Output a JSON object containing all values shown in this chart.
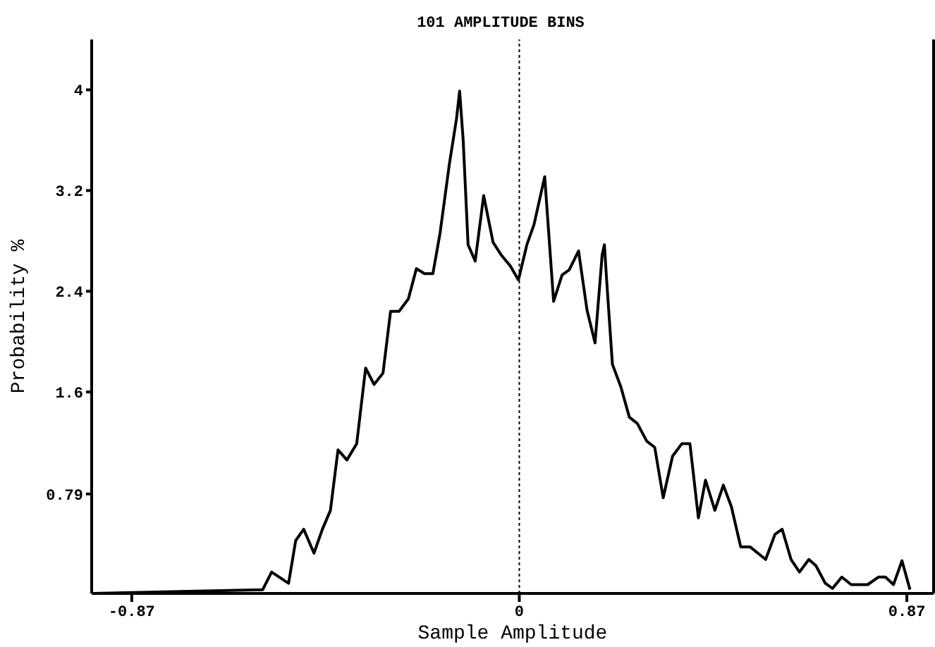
{
  "chart_data": {
    "type": "line",
    "title": "101 AMPLITUDE BINS",
    "xlabel": "Sample Amplitude",
    "ylabel": "Probability %",
    "x": [
      -0.959,
      -0.576,
      -0.556,
      -0.518,
      -0.502,
      -0.484,
      -0.461,
      -0.442,
      -0.424,
      -0.407,
      -0.387,
      -0.365,
      -0.345,
      -0.326,
      -0.306,
      -0.289,
      -0.27,
      -0.249,
      -0.231,
      -0.213,
      -0.194,
      -0.178,
      -0.157,
      -0.141,
      -0.134,
      -0.126,
      -0.115,
      -0.099,
      -0.08,
      -0.059,
      -0.041,
      -0.02,
      -0.002,
      0.017,
      0.033,
      0.057,
      0.077,
      0.096,
      0.112,
      0.133,
      0.152,
      0.17,
      0.186,
      0.191,
      0.196,
      0.209,
      0.228,
      0.247,
      0.265,
      0.286,
      0.304,
      0.323,
      0.344,
      0.365,
      0.383,
      0.402,
      0.418,
      0.439,
      0.458,
      0.476,
      0.497,
      0.518,
      0.553,
      0.574,
      0.59,
      0.61,
      0.629,
      0.65,
      0.666,
      0.687,
      0.703,
      0.724,
      0.745,
      0.782,
      0.806,
      0.822,
      0.84,
      0.859,
      0.877
    ],
    "series": [
      {
        "color": "#000000",
        "values": [
          0,
          0.03,
          0.17,
          0.08,
          0.42,
          0.51,
          0.32,
          0.51,
          0.66,
          1.14,
          1.06,
          1.19,
          1.79,
          1.66,
          1.75,
          2.24,
          2.24,
          2.34,
          2.58,
          2.54,
          2.54,
          2.86,
          3.41,
          3.77,
          3.99,
          3.6,
          2.77,
          2.64,
          3.16,
          2.79,
          2.69,
          2.6,
          2.49,
          2.77,
          2.93,
          3.31,
          2.32,
          2.53,
          2.57,
          2.72,
          2.25,
          1.99,
          2.69,
          2.77,
          2.49,
          1.82,
          1.64,
          1.4,
          1.35,
          1.21,
          1.16,
          0.76,
          1.09,
          1.19,
          1.19,
          0.6,
          0.9,
          0.66,
          0.86,
          0.69,
          0.37,
          0.37,
          0.27,
          0.47,
          0.51,
          0.27,
          0.17,
          0.27,
          0.22,
          0.08,
          0.04,
          0.13,
          0.07,
          0.07,
          0.13,
          0.13,
          0.07,
          0.26,
          0.03
        ]
      }
    ],
    "xlim": [
      -0.96,
      0.93
    ],
    "xticks": [
      -0.87,
      0,
      0.87
    ],
    "ylim": [
      0,
      4.4
    ],
    "yticks": [
      0.79,
      1.6,
      2.4,
      3.2,
      4
    ],
    "ref_lines": [
      {
        "axis": "x",
        "value": 0,
        "line_style": "dotted"
      }
    ],
    "grid": false,
    "marker": "none",
    "line_style": "solid"
  }
}
